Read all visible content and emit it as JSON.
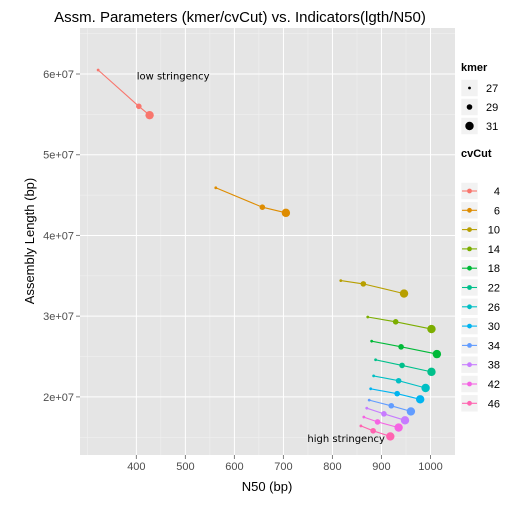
{
  "chart_data": {
    "type": "scatter",
    "title": "Assm. Parameters (kmer/cvCut) vs. Indicators(lgth/N50)",
    "xlabel": "N50 (bp)",
    "ylabel": "Assembly Length (bp)",
    "xlim": [
      285,
      1050
    ],
    "ylim": [
      12800000,
      65700000
    ],
    "x_ticks": [
      400,
      500,
      600,
      700,
      800,
      900,
      1000
    ],
    "x_tick_labels": [
      "400",
      "500",
      "600",
      "700",
      "800",
      "900",
      "1000"
    ],
    "y_ticks": [
      20000000,
      30000000,
      40000000,
      50000000,
      60000000
    ],
    "y_tick_labels": [
      "2e+07",
      "3e+07",
      "4e+07",
      "5e+07",
      "6e+07"
    ],
    "grid": true,
    "legend_position": "right",
    "annotations": [
      {
        "text": "low stringency",
        "x": 475,
        "y": 59300000
      },
      {
        "text": "high stringency",
        "x": 828,
        "y": 14400000
      }
    ],
    "size_legend": {
      "title": "kmer",
      "entries": [
        "27",
        "29",
        "31"
      ]
    },
    "color_legend": {
      "title": "cvCut",
      "entries": [
        {
          "name": "4",
          "color": "#F8766D"
        },
        {
          "name": "6",
          "color": "#DE8C00"
        },
        {
          "name": "10",
          "color": "#B79F00"
        },
        {
          "name": "14",
          "color": "#7CAE00"
        },
        {
          "name": "18",
          "color": "#00BA38"
        },
        {
          "name": "22",
          "color": "#00C08B"
        },
        {
          "name": "26",
          "color": "#00BFC4"
        },
        {
          "name": "30",
          "color": "#00B4F0"
        },
        {
          "name": "34",
          "color": "#619CFF"
        },
        {
          "name": "38",
          "color": "#C77CFF"
        },
        {
          "name": "42",
          "color": "#F564E3"
        },
        {
          "name": "46",
          "color": "#FF64B0"
        }
      ]
    },
    "series": [
      {
        "name": "4",
        "color": "#F8766D",
        "points": [
          {
            "kmer": 27,
            "x": 322,
            "y": 60500000
          },
          {
            "kmer": 29,
            "x": 405,
            "y": 56000000
          },
          {
            "kmer": 31,
            "x": 427,
            "y": 54900000
          }
        ]
      },
      {
        "name": "6",
        "color": "#DE8C00",
        "points": [
          {
            "kmer": 27,
            "x": 562,
            "y": 45900000
          },
          {
            "kmer": 29,
            "x": 657,
            "y": 43500000
          },
          {
            "kmer": 31,
            "x": 705,
            "y": 42800000
          }
        ]
      },
      {
        "name": "10",
        "color": "#B79F00",
        "points": [
          {
            "kmer": 27,
            "x": 817,
            "y": 34400000
          },
          {
            "kmer": 29,
            "x": 863,
            "y": 34000000
          },
          {
            "kmer": 31,
            "x": 946,
            "y": 32800000
          }
        ]
      },
      {
        "name": "14",
        "color": "#7CAE00",
        "points": [
          {
            "kmer": 27,
            "x": 872,
            "y": 29900000
          },
          {
            "kmer": 29,
            "x": 929,
            "y": 29300000
          },
          {
            "kmer": 31,
            "x": 1002,
            "y": 28400000
          }
        ]
      },
      {
        "name": "18",
        "color": "#00BA38",
        "points": [
          {
            "kmer": 27,
            "x": 880,
            "y": 26900000
          },
          {
            "kmer": 29,
            "x": 940,
            "y": 26200000
          },
          {
            "kmer": 31,
            "x": 1013,
            "y": 25300000
          }
        ]
      },
      {
        "name": "22",
        "color": "#00C08B",
        "points": [
          {
            "kmer": 27,
            "x": 888,
            "y": 24600000
          },
          {
            "kmer": 29,
            "x": 942,
            "y": 23900000
          },
          {
            "kmer": 31,
            "x": 1002,
            "y": 23100000
          }
        ]
      },
      {
        "name": "26",
        "color": "#00BFC4",
        "points": [
          {
            "kmer": 27,
            "x": 884,
            "y": 22600000
          },
          {
            "kmer": 29,
            "x": 935,
            "y": 22000000
          },
          {
            "kmer": 31,
            "x": 990,
            "y": 21100000
          }
        ]
      },
      {
        "name": "30",
        "color": "#00B4F0",
        "points": [
          {
            "kmer": 27,
            "x": 878,
            "y": 21000000
          },
          {
            "kmer": 29,
            "x": 932,
            "y": 20400000
          },
          {
            "kmer": 31,
            "x": 979,
            "y": 19700000
          }
        ]
      },
      {
        "name": "34",
        "color": "#619CFF",
        "points": [
          {
            "kmer": 27,
            "x": 875,
            "y": 19600000
          },
          {
            "kmer": 29,
            "x": 920,
            "y": 18900000
          },
          {
            "kmer": 31,
            "x": 960,
            "y": 18200000
          }
        ]
      },
      {
        "name": "38",
        "color": "#C77CFF",
        "points": [
          {
            "kmer": 27,
            "x": 870,
            "y": 18600000
          },
          {
            "kmer": 29,
            "x": 905,
            "y": 17900000
          },
          {
            "kmer": 31,
            "x": 948,
            "y": 17100000
          }
        ]
      },
      {
        "name": "42",
        "color": "#F564E3",
        "points": [
          {
            "kmer": 27,
            "x": 864,
            "y": 17500000
          },
          {
            "kmer": 29,
            "x": 892,
            "y": 16900000
          },
          {
            "kmer": 31,
            "x": 935,
            "y": 16200000
          }
        ]
      },
      {
        "name": "46",
        "color": "#FF64B0",
        "points": [
          {
            "kmer": 27,
            "x": 858,
            "y": 16400000
          },
          {
            "kmer": 29,
            "x": 883,
            "y": 15800000
          },
          {
            "kmer": 31,
            "x": 918,
            "y": 15100000
          }
        ]
      }
    ]
  }
}
